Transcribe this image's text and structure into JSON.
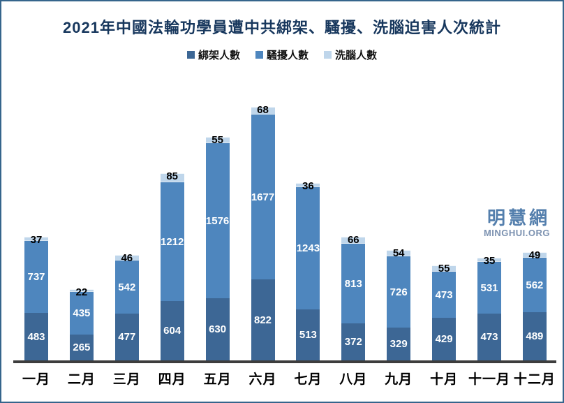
{
  "title": "2021年中國法輪功學員遭中共綁架、騷擾、洗腦迫害人次統計",
  "legend": {
    "items": [
      {
        "label": "綁架人數",
        "color": "#3d6795"
      },
      {
        "label": "騷擾人數",
        "color": "#4e86be"
      },
      {
        "label": "洗腦人數",
        "color": "#bfd6eb"
      }
    ]
  },
  "watermark": {
    "cn": "明慧網",
    "en": "MINGHUI.ORG"
  },
  "colors": {
    "title": "#17375d",
    "axis": "#3d3d3d",
    "frame_border": "#35658c",
    "watermark_cn": "#547fad",
    "watermark_en": "#7b91b0"
  },
  "chart_data": {
    "type": "bar",
    "stacked": true,
    "title": "2021年中國法輪功學員遭中共綁架、騷擾、洗腦迫害人次統計",
    "categories": [
      "一月",
      "二月",
      "三月",
      "四月",
      "五月",
      "六月",
      "七月",
      "八月",
      "九月",
      "十月",
      "十一月",
      "十二月"
    ],
    "series": [
      {
        "name": "綁架人數",
        "color": "#3d6795",
        "label_color": "#ffffff",
        "values": [
          483,
          265,
          477,
          604,
          630,
          822,
          513,
          372,
          329,
          429,
          473,
          489
        ]
      },
      {
        "name": "騷擾人數",
        "color": "#4e86be",
        "label_color": "#ffffff",
        "values": [
          737,
          435,
          542,
          1212,
          1576,
          1677,
          1243,
          813,
          726,
          473,
          531,
          562
        ]
      },
      {
        "name": "洗腦人數",
        "color": "#bfd6eb",
        "label_color": "#000000",
        "values": [
          37,
          22,
          46,
          85,
          55,
          68,
          36,
          66,
          54,
          55,
          35,
          49
        ]
      }
    ],
    "xlabel": "",
    "ylabel": "",
    "ylim": [
      0,
      2600
    ],
    "grid": false,
    "legend_position": "top"
  }
}
